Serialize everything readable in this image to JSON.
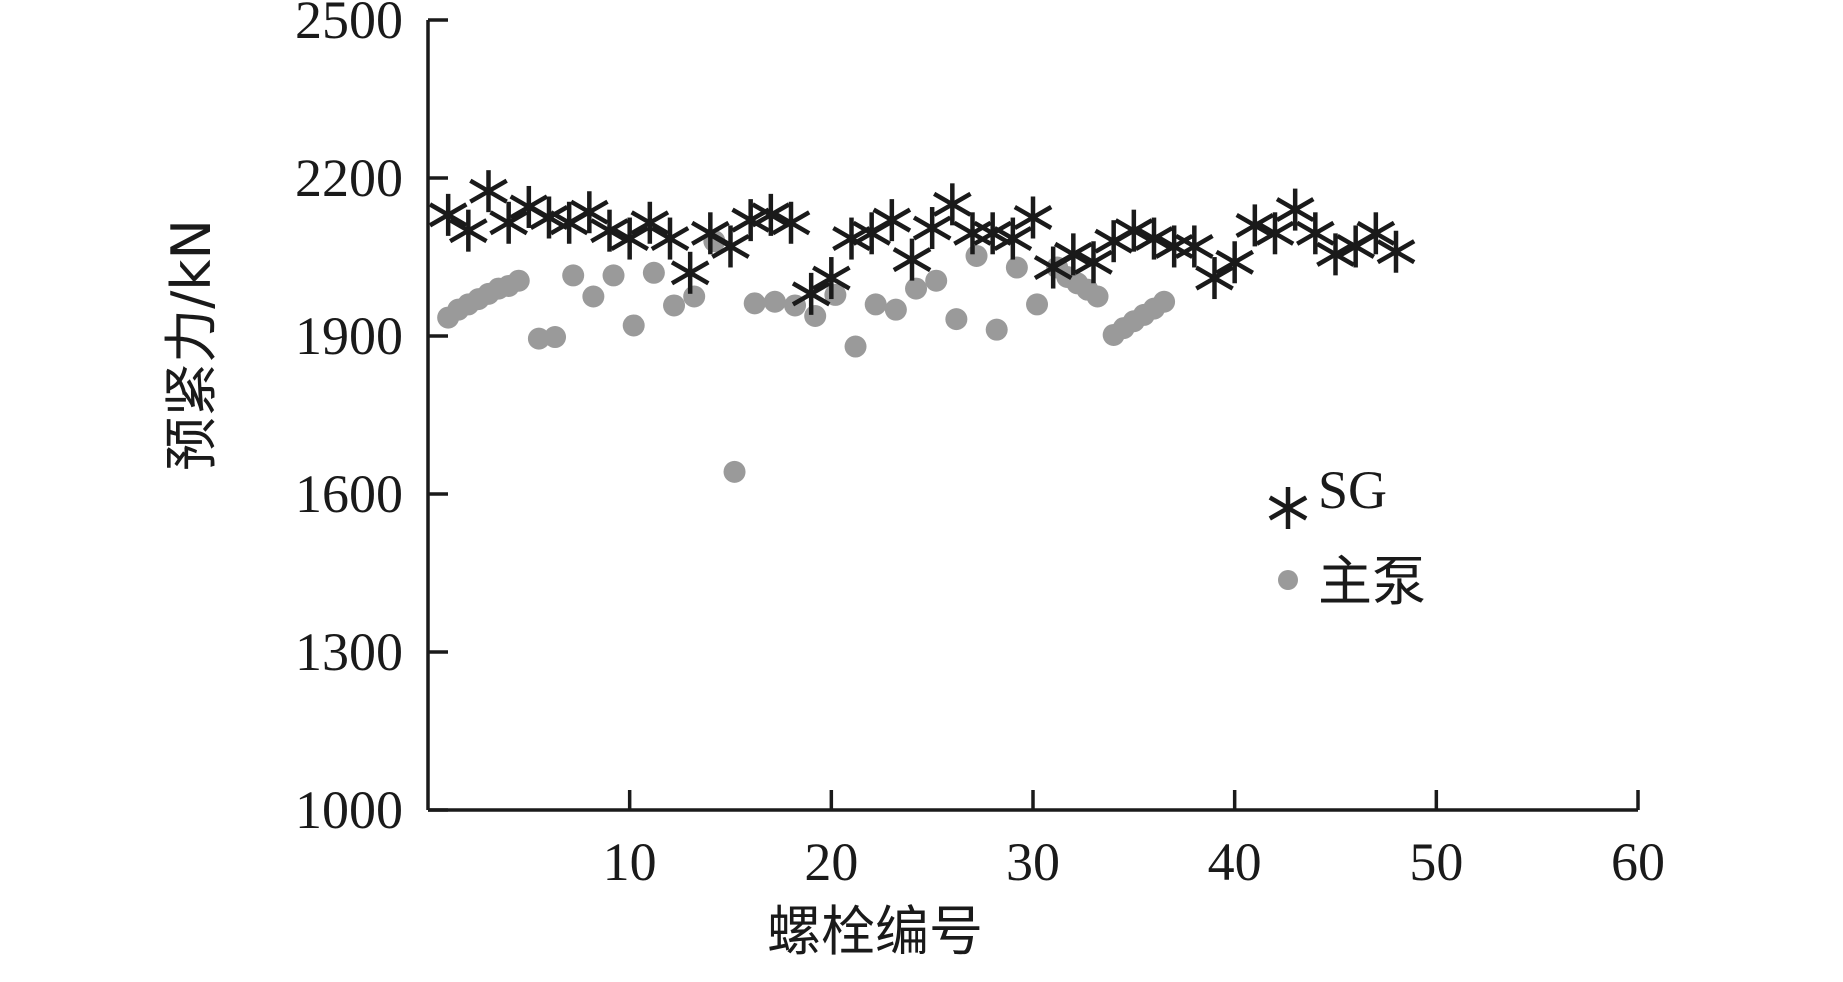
{
  "chart_data": {
    "type": "scatter",
    "title": "",
    "xlabel": "螺栓编号",
    "ylabel": "预紧力/kN",
    "xlim": [
      0,
      60
    ],
    "ylim": [
      1000,
      2500
    ],
    "x_ticks": [
      "10",
      "20",
      "30",
      "40",
      "50",
      "60"
    ],
    "y_ticks": [
      "1000",
      "1300",
      "1600",
      "1900",
      "2200",
      "2500"
    ],
    "grid": false,
    "legend_position": "right",
    "series": [
      {
        "name": "SG",
        "marker": "asterisk",
        "color": "#1a1a1a",
        "points": [
          [
            1,
            2130
          ],
          [
            2,
            2100
          ],
          [
            3,
            2175
          ],
          [
            4,
            2115
          ],
          [
            5,
            2145
          ],
          [
            6,
            2125
          ],
          [
            7,
            2115
          ],
          [
            8,
            2135
          ],
          [
            9,
            2100
          ],
          [
            10,
            2085
          ],
          [
            11,
            2115
          ],
          [
            12,
            2085
          ],
          [
            13,
            2020
          ],
          [
            14,
            2095
          ],
          [
            15,
            2070
          ],
          [
            16,
            2120
          ],
          [
            17,
            2130
          ],
          [
            18,
            2115
          ],
          [
            19,
            1980
          ],
          [
            20,
            2010
          ],
          [
            21,
            2085
          ],
          [
            22,
            2095
          ],
          [
            23,
            2120
          ],
          [
            24,
            2045
          ],
          [
            25,
            2105
          ],
          [
            26,
            2150
          ],
          [
            27,
            2095
          ],
          [
            28,
            2095
          ],
          [
            29,
            2085
          ],
          [
            30,
            2125
          ],
          [
            31,
            2030
          ],
          [
            32,
            2055
          ],
          [
            33,
            2040
          ],
          [
            34,
            2080
          ],
          [
            35,
            2100
          ],
          [
            36,
            2085
          ],
          [
            37,
            2070
          ],
          [
            38,
            2070
          ],
          [
            39,
            2010
          ],
          [
            40,
            2040
          ],
          [
            41,
            2110
          ],
          [
            42,
            2095
          ],
          [
            43,
            2140
          ],
          [
            44,
            2095
          ],
          [
            45,
            2055
          ],
          [
            46,
            2070
          ],
          [
            47,
            2095
          ],
          [
            48,
            2060
          ]
        ]
      },
      {
        "name": "主泵",
        "marker": "circle",
        "color": "#9a9a9a",
        "points": [
          [
            1,
            1935
          ],
          [
            1.5,
            1950
          ],
          [
            2,
            1960
          ],
          [
            2.5,
            1970
          ],
          [
            3,
            1980
          ],
          [
            3.5,
            1990
          ],
          [
            4,
            1995
          ],
          [
            4.5,
            2005
          ],
          [
            5.5,
            1895
          ],
          [
            6.3,
            1898
          ],
          [
            7.2,
            2015
          ],
          [
            8.2,
            1975
          ],
          [
            9.2,
            2015
          ],
          [
            10.2,
            1920
          ],
          [
            11.2,
            2020
          ],
          [
            12.2,
            1958
          ],
          [
            13.2,
            1975
          ],
          [
            14.2,
            2080
          ],
          [
            15.2,
            1642
          ],
          [
            16.2,
            1962
          ],
          [
            17.2,
            1965
          ],
          [
            18.2,
            1958
          ],
          [
            19.2,
            1938
          ],
          [
            20.2,
            1978
          ],
          [
            21.2,
            1880
          ],
          [
            22.2,
            1960
          ],
          [
            23.2,
            1950
          ],
          [
            24.2,
            1990
          ],
          [
            25.2,
            2005
          ],
          [
            26.2,
            1932
          ],
          [
            27.2,
            2052
          ],
          [
            28.2,
            1912
          ],
          [
            29.2,
            2030
          ],
          [
            30.2,
            1960
          ],
          [
            31.2,
            2030
          ],
          [
            31.7,
            2012
          ],
          [
            32.2,
            2000
          ],
          [
            32.7,
            1988
          ],
          [
            33.2,
            1975
          ],
          [
            34,
            1902
          ],
          [
            34.5,
            1915
          ],
          [
            35,
            1928
          ],
          [
            35.5,
            1940
          ],
          [
            36,
            1952
          ],
          [
            36.5,
            1965
          ]
        ]
      }
    ]
  }
}
